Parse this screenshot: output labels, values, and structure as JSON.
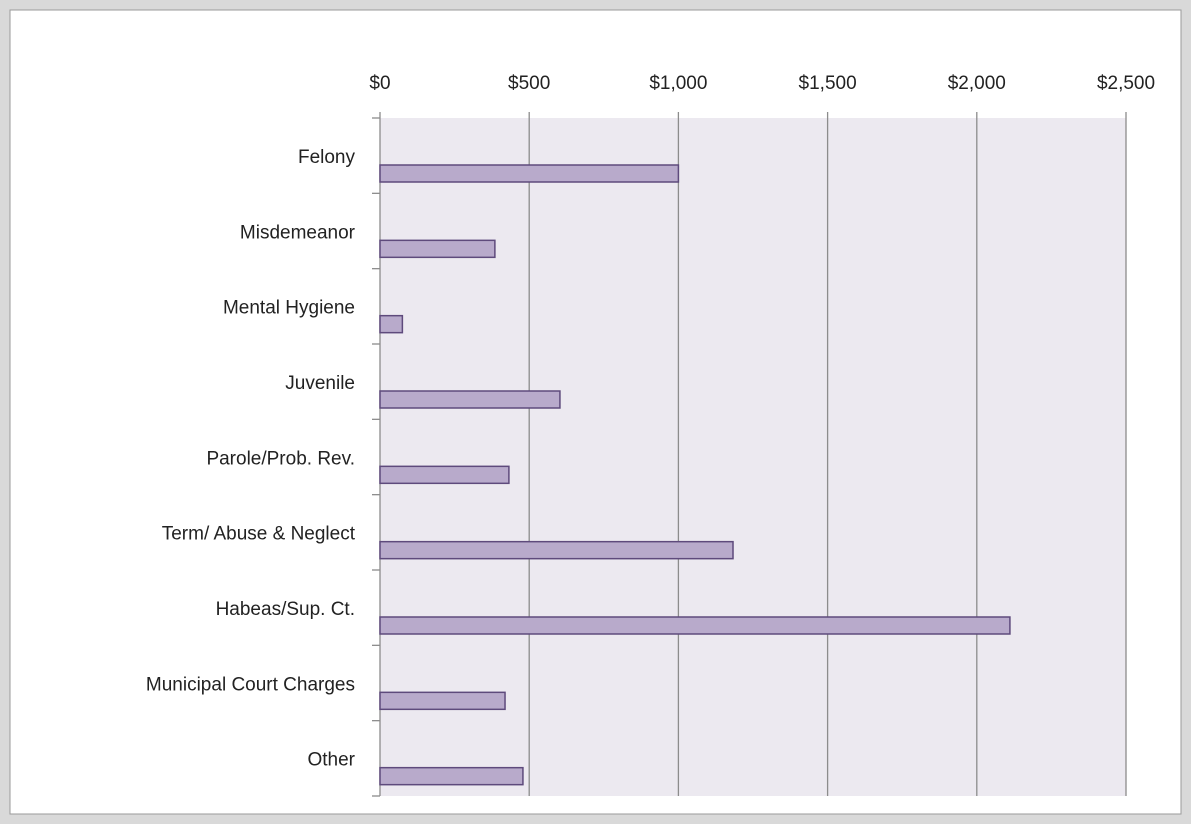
{
  "chart_data": {
    "type": "bar",
    "orientation": "horizontal",
    "categories": [
      "Felony",
      "Misdemeanor",
      "Mental Hygiene",
      "Juvenile",
      "Parole/Prob. Rev.",
      "Term/ Abuse & Neglect",
      "Habeas/Sup. Ct.",
      "Municipal Court Charges",
      "Other"
    ],
    "values": [
      1000,
      385,
      75,
      603,
      432,
      1183,
      2111,
      419,
      479
    ],
    "color": "#b8aacb",
    "xlim": [
      0,
      2500
    ],
    "xticks": [
      {
        "value": 0,
        "label": "$0"
      },
      {
        "value": 500,
        "label": "$500"
      },
      {
        "value": 1000,
        "label": "$1,000"
      },
      {
        "value": 1500,
        "label": "$1,500"
      },
      {
        "value": 2000,
        "label": "$2,000"
      },
      {
        "value": 2500,
        "label": "$2,500"
      }
    ],
    "grid": true
  }
}
